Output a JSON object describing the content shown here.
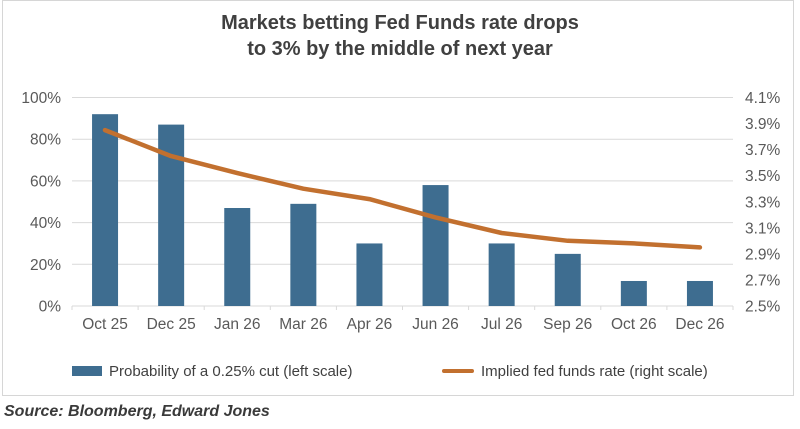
{
  "title": {
    "full": "Markets betting Fed Funds rate drops to 3% by the middle of next year",
    "line1": "Markets betting Fed Funds rate drops",
    "line2": "to 3% by the middle of next year"
  },
  "legend": {
    "items": [
      {
        "label": "Probability of a 0.25% cut (left scale)",
        "swatch": "bar"
      },
      {
        "label": "Implied fed funds rate (right scale)",
        "swatch": "line"
      }
    ]
  },
  "source": "Source: Bloomberg, Edward Jones",
  "colors": {
    "bar": "#3e6d90",
    "line": "#c2702f",
    "grid": "#d9d9d9",
    "axis_text": "#595959",
    "title_text": "#404040"
  },
  "chart_data": {
    "type": "combo",
    "title": "Markets betting Fed Funds rate drops to 3% by the middle of next year",
    "categories": [
      "Oct 25",
      "Dec 25",
      "Jan 26",
      "Mar 26",
      "Apr 26",
      "Jun 26",
      "Jul 26",
      "Sep 26",
      "Oct 26",
      "Dec 26"
    ],
    "series": [
      {
        "name": "Probability of a 0.25% cut (left scale)",
        "type": "bar",
        "axis": "left",
        "unit": "%",
        "color": "#3e6d90",
        "values": [
          92,
          87,
          47,
          49,
          30,
          58,
          30,
          25,
          12,
          12
        ]
      },
      {
        "name": "Implied fed funds rate (right scale)",
        "type": "line",
        "axis": "right",
        "unit": "%",
        "color": "#c2702f",
        "values": [
          3.85,
          3.65,
          3.52,
          3.4,
          3.32,
          3.18,
          3.06,
          3.0,
          2.98,
          2.95
        ]
      }
    ],
    "left_axis": {
      "min": 0,
      "max": 100,
      "step": 20,
      "tick_values": [
        100,
        80,
        60,
        40,
        20,
        0
      ],
      "tick_labels": [
        "100%",
        "80%",
        "60%",
        "40%",
        "20%",
        "0%"
      ]
    },
    "right_axis": {
      "min": 2.5,
      "max": 4.1,
      "step": 0.2,
      "tick_values": [
        4.1,
        3.9,
        3.7,
        3.5,
        3.3,
        3.1,
        2.9,
        2.7,
        2.5
      ],
      "tick_labels": [
        "4.1%",
        "3.9%",
        "3.7%",
        "3.5%",
        "3.3%",
        "3.1%",
        "2.9%",
        "2.7%",
        "2.5%"
      ]
    },
    "grid": true,
    "legend_position": "bottom"
  }
}
